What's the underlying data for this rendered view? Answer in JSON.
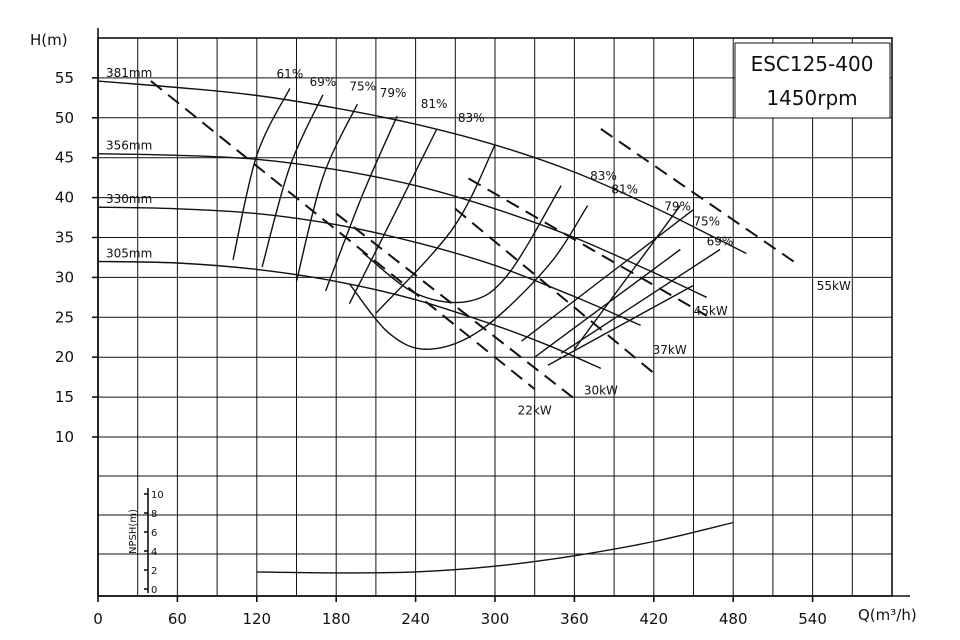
{
  "chart_data": {
    "type": "line",
    "title": "ESC125-400",
    "subtitle": "1450rpm",
    "xlabel": "Q(m³/h)",
    "ylabel": "H(m)",
    "xlim": [
      0,
      600
    ],
    "ylim": [
      10,
      60
    ],
    "x_ticks": [
      "0",
      "60",
      "120",
      "180",
      "240",
      "300",
      "360",
      "420",
      "480",
      "540"
    ],
    "y_ticks": [
      "10",
      "15",
      "20",
      "25",
      "30",
      "35",
      "40",
      "45",
      "50",
      "55"
    ],
    "grid": true,
    "head_curves": [
      {
        "name": "381mm",
        "x": [
          0,
          60,
          120,
          180,
          240,
          300,
          360,
          420,
          460,
          490
        ],
        "y": [
          54.6,
          53.8,
          52.8,
          51.2,
          49.2,
          46.6,
          43.2,
          38.8,
          35.5,
          33
        ]
      },
      {
        "name": "356mm",
        "x": [
          0,
          60,
          120,
          180,
          240,
          300,
          360,
          420,
          460
        ],
        "y": [
          45.5,
          45.3,
          44.8,
          43.5,
          41.5,
          38.6,
          35,
          30.6,
          27.5
        ]
      },
      {
        "name": "330mm",
        "x": [
          0,
          60,
          120,
          180,
          240,
          300,
          360,
          410
        ],
        "y": [
          38.8,
          38.6,
          38,
          36.6,
          34.4,
          31.5,
          27.6,
          24
        ]
      },
      {
        "name": "305mm",
        "x": [
          0,
          60,
          120,
          180,
          240,
          300,
          340,
          380
        ],
        "y": [
          32,
          31.8,
          31,
          29.5,
          27.2,
          24,
          21.5,
          18.6
        ]
      }
    ],
    "efficiency_labels": {
      "left": [
        "61%",
        "69%",
        "75%",
        "79%",
        "81%",
        "83%"
      ],
      "right": [
        "83%",
        "81%",
        "79%",
        "75%",
        "69%"
      ]
    },
    "efficiency_curves": [
      {
        "name": "61%",
        "x": [
          102,
          120,
          145
        ],
        "y": [
          32.2,
          45.3,
          53.7
        ]
      },
      {
        "name": "69%",
        "x": [
          124,
          145,
          170
        ],
        "y": [
          31.3,
          43.9,
          52.9
        ]
      },
      {
        "name": "75%",
        "x": [
          150,
          170,
          196
        ],
        "y": [
          29.5,
          42.6,
          51.7
        ]
      },
      {
        "name": "79%",
        "x": [
          172,
          200,
          226
        ],
        "y": [
          28.3,
          40.4,
          50.2
        ]
      },
      {
        "name": "81%",
        "x": [
          190,
          226,
          256
        ],
        "y": [
          26.7,
          38.6,
          48.6
        ]
      },
      {
        "name": "83%",
        "x": [
          210,
          268,
          300
        ],
        "y": [
          25.5,
          36.1,
          46.6
        ]
      }
    ],
    "power_lines": [
      {
        "name": "22kW",
        "x": [
          40,
          330
        ],
        "y": [
          54.6,
          16
        ]
      },
      {
        "name": "30kW",
        "x": [
          180,
          360
        ],
        "y": [
          38,
          14.8
        ]
      },
      {
        "name": "37kW",
        "x": [
          270,
          420
        ],
        "y": [
          38.6,
          18
        ]
      },
      {
        "name": "45kW",
        "x": [
          280,
          460
        ],
        "y": [
          42.4,
          25.2
        ]
      },
      {
        "name": "55kW",
        "x": [
          380,
          530
        ],
        "y": [
          48.6,
          31.5
        ]
      }
    ],
    "npsh": {
      "ylabel": "NPSH(m)",
      "ticks": [
        "10",
        "8",
        "6",
        "4",
        "2",
        "0"
      ],
      "ylim": [
        0,
        10
      ],
      "x": [
        120,
        180,
        240,
        300,
        360,
        420,
        480
      ],
      "y": [
        1.8,
        1.7,
        1.8,
        2.4,
        3.5,
        5.0,
        7.0
      ]
    }
  }
}
